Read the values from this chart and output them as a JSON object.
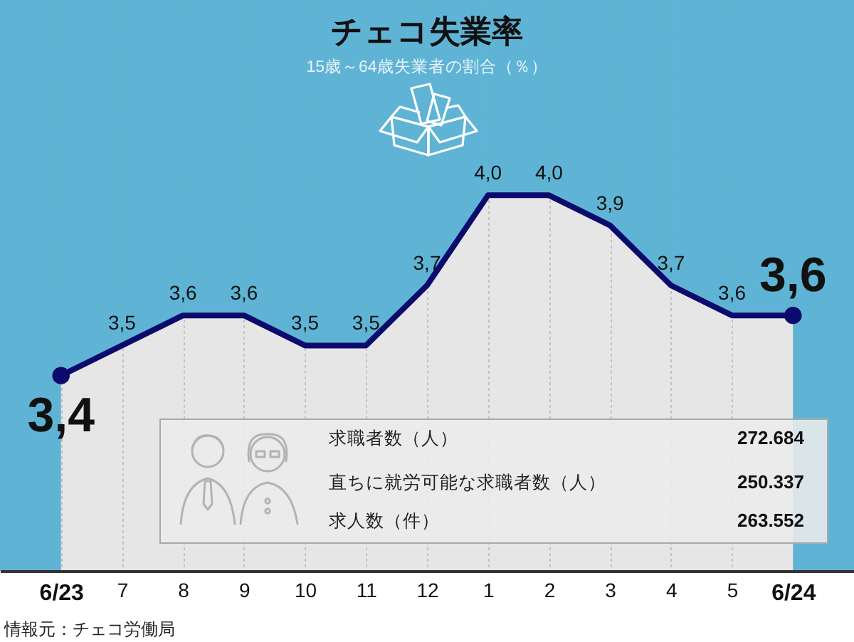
{
  "chart_data": {
    "type": "area",
    "title": "チェコ失業率",
    "subtitle": "15歳～64歳失業者の割合（％）",
    "categories": [
      "6/23",
      "7",
      "8",
      "9",
      "10",
      "11",
      "12",
      "1",
      "2",
      "3",
      "4",
      "5",
      "6/24"
    ],
    "series": [
      {
        "color": "#0b0b6e",
        "values": [
          3.4,
          3.5,
          3.6,
          3.6,
          3.5,
          3.5,
          3.7,
          4.0,
          4.0,
          3.9,
          3.7,
          3.6,
          3.6
        ],
        "value_labels": [
          "3,4",
          "3,5",
          "3,6",
          "3,6",
          "3,5",
          "3,5",
          "3,7",
          "4,0",
          "4,0",
          "3,9",
          "3,7",
          "3,6",
          "3,6"
        ]
      },
      {
        "type": "scatter",
        "color": "#0b0b6e",
        "x": [
          "6/23",
          "6/24"
        ],
        "values": [
          3.4,
          3.6
        ]
      }
    ],
    "ylim": [
      2.75,
      4.65
    ],
    "tick_labels": "x",
    "grid": "x",
    "annotations": [
      "求職者数（人）",
      "272.684",
      "直ちに就労可能な求職者数（人）",
      "250.337",
      "求人数（件）",
      "263.552",
      "情報元：チェコ労働局"
    ]
  }
}
